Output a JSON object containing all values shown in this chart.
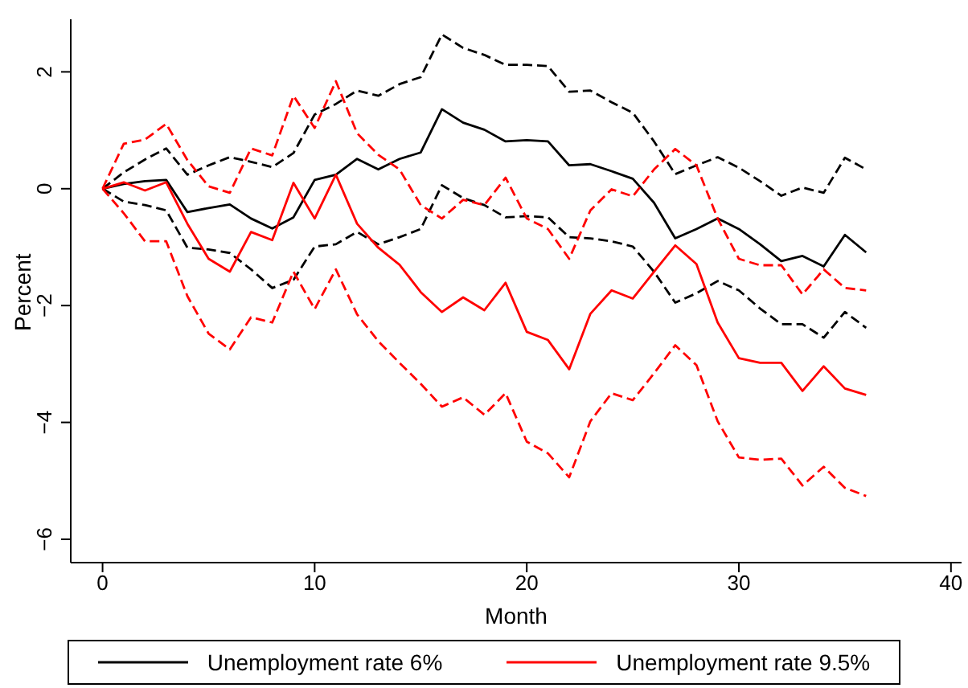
{
  "chart_data": {
    "type": "line",
    "xlabel": "Month",
    "ylabel": "Percent",
    "x": [
      0,
      1,
      2,
      3,
      4,
      5,
      6,
      7,
      8,
      9,
      10,
      11,
      12,
      13,
      14,
      15,
      16,
      17,
      18,
      19,
      20,
      21,
      22,
      23,
      24,
      25,
      26,
      27,
      28,
      29,
      30,
      31,
      32,
      33,
      34,
      35,
      36
    ],
    "series": [
      {
        "name": "Unemployment rate 6%",
        "color": "#000000",
        "line_style": "solid",
        "values": [
          0,
          0.08,
          0.13,
          0.15,
          -0.4,
          -0.33,
          -0.27,
          -0.51,
          -0.68,
          -0.49,
          0.15,
          0.24,
          0.51,
          0.33,
          0.51,
          0.62,
          1.36,
          1.13,
          1.01,
          0.81,
          0.83,
          0.81,
          0.4,
          0.42,
          0.3,
          0.17,
          -0.24,
          -0.85,
          -0.69,
          -0.51,
          -0.69,
          -0.95,
          -1.24,
          -1.15,
          -1.33,
          -0.79,
          -1.09
        ]
      },
      {
        "color": "#000000",
        "line_style": "dashed",
        "values": [
          0,
          0.28,
          0.5,
          0.69,
          0.24,
          0.4,
          0.54,
          0.46,
          0.37,
          0.61,
          1.27,
          1.45,
          1.68,
          1.59,
          1.79,
          1.91,
          2.64,
          2.41,
          2.29,
          2.12,
          2.12,
          2.1,
          1.66,
          1.68,
          1.48,
          1.3,
          0.81,
          0.25,
          0.4,
          0.54,
          0.36,
          0.13,
          -0.12,
          0.02,
          -0.07,
          0.53,
          0.33
        ]
      },
      {
        "color": "#000000",
        "line_style": "dashed",
        "values": [
          0,
          -0.22,
          -0.28,
          -0.37,
          -1.01,
          -1.04,
          -1.1,
          -1.38,
          -1.7,
          -1.56,
          -0.99,
          -0.95,
          -0.74,
          -0.95,
          -0.83,
          -0.69,
          0.06,
          -0.16,
          -0.28,
          -0.49,
          -0.47,
          -0.49,
          -0.83,
          -0.85,
          -0.9,
          -0.99,
          -1.42,
          -1.95,
          -1.79,
          -1.58,
          -1.74,
          -2.05,
          -2.32,
          -2.32,
          -2.55,
          -2.11,
          -2.38
        ]
      },
      {
        "name": "Unemployment rate 9.5%",
        "color": "#ff0000",
        "line_style": "solid",
        "values": [
          0,
          0.11,
          -0.03,
          0.11,
          -0.6,
          -1.2,
          -1.42,
          -0.74,
          -0.88,
          0.1,
          -0.51,
          0.24,
          -0.6,
          -1.01,
          -1.3,
          -1.77,
          -2.11,
          -1.86,
          -2.08,
          -1.61,
          -2.45,
          -2.59,
          -3.09,
          -2.14,
          -1.74,
          -1.88,
          -1.42,
          -0.97,
          -1.29,
          -2.29,
          -2.9,
          -2.98,
          -2.98,
          -3.46,
          -3.04,
          -3.42,
          -3.53
        ]
      },
      {
        "color": "#ff0000",
        "line_style": "dashed",
        "values": [
          0,
          0.77,
          0.84,
          1.11,
          0.49,
          0.04,
          -0.07,
          0.69,
          0.57,
          1.59,
          1.04,
          1.84,
          0.95,
          0.58,
          0.33,
          -0.28,
          -0.51,
          -0.19,
          -0.28,
          0.19,
          -0.51,
          -0.69,
          -1.2,
          -0.37,
          -0.01,
          -0.13,
          0.33,
          0.68,
          0.4,
          -0.51,
          -1.2,
          -1.31,
          -1.31,
          -1.81,
          -1.38,
          -1.7,
          -1.74
        ]
      },
      {
        "color": "#ff0000",
        "line_style": "dashed",
        "values": [
          0,
          -0.42,
          -0.9,
          -0.9,
          -1.84,
          -2.48,
          -2.75,
          -2.2,
          -2.29,
          -1.42,
          -2.06,
          -1.38,
          -2.15,
          -2.61,
          -2.98,
          -3.34,
          -3.73,
          -3.57,
          -3.87,
          -3.5,
          -4.33,
          -4.53,
          -4.94,
          -3.98,
          -3.5,
          -3.62,
          -3.16,
          -2.68,
          -3.02,
          -3.98,
          -4.6,
          -4.64,
          -4.62,
          -5.08,
          -4.76,
          -5.12,
          -5.26
        ]
      }
    ],
    "xlim": [
      -1.5,
      40.5
    ],
    "xticks": [
      0,
      10,
      20,
      30,
      40
    ],
    "ylim": [
      -6.4,
      2.9
    ],
    "yticks": [
      {
        "value": -6,
        "label": "−6"
      },
      {
        "value": -4,
        "label": "−4"
      },
      {
        "value": -2,
        "label": "−2"
      },
      0,
      2
    ],
    "grid": false,
    "legend": "bottom",
    "marker": "none"
  }
}
